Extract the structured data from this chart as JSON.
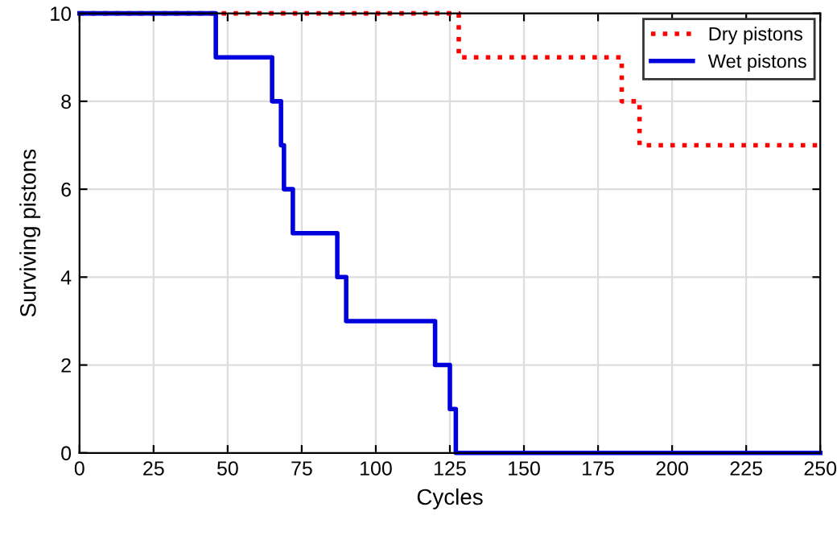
{
  "chart_data": {
    "type": "step",
    "xlabel": "Cycles",
    "ylabel": "Surviving pistons",
    "xlim": [
      0,
      250
    ],
    "ylim": [
      0,
      10
    ],
    "xticks": [
      0,
      25,
      50,
      75,
      100,
      125,
      150,
      175,
      200,
      225,
      250
    ],
    "yticks": [
      0,
      2,
      4,
      6,
      8,
      10
    ],
    "grid": true,
    "legend": "top right",
    "series": [
      {
        "name": "Dry pistons",
        "color": "#ff0000",
        "line_style": "dotted",
        "x": [
          0,
          128,
          183,
          189,
          250
        ],
        "values": [
          10,
          9,
          8,
          7,
          7
        ]
      },
      {
        "name": "Wet pistons",
        "color": "#0000dd",
        "line_style": "solid",
        "x": [
          0,
          46,
          65,
          68,
          69,
          72,
          87,
          90,
          120,
          125,
          127,
          250
        ],
        "values": [
          10,
          9,
          8,
          7,
          6,
          5,
          4,
          3,
          2,
          1,
          0,
          0
        ]
      }
    ]
  }
}
